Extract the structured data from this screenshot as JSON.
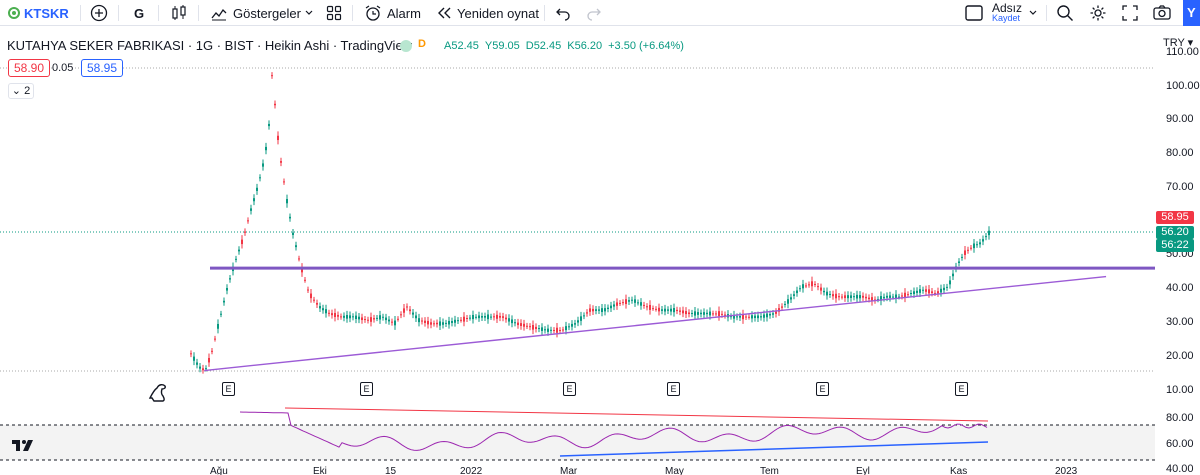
{
  "toolbar": {
    "symbol": "KTSKR",
    "interval": "G",
    "indicators_label": "Göstergeler",
    "alarm_label": "Alarm",
    "replay_label": "Yeniden oynat",
    "layout_name": "Adsız",
    "save_label": "Kaydet",
    "corner_label": "Y"
  },
  "legend": {
    "title": "KUTAHYA SEKER FABRIKASI · 1G · BIST · Heikin Ashi · TradingView",
    "delayed_badge": "D",
    "open": "A52.45",
    "high": "Y59.05",
    "low": "D52.45",
    "close": "K56.20",
    "change": "+3.50 (+6.64%)"
  },
  "trade": {
    "sell_price": "58.90",
    "spread": "0.05",
    "buy_price": "58.95",
    "collapse_count": "2"
  },
  "price_axis": {
    "currency": "TRY",
    "ticks": [
      "110.00",
      "100.00",
      "90.00",
      "80.00",
      "70.00",
      "60.00",
      "50.00",
      "40.00",
      "30.00",
      "20.00",
      "10.00"
    ],
    "tag_high": "58.95",
    "tag_last": "56.20",
    "tag_countdown": "56:22",
    "tag_high_color": "#f23645",
    "tag_last_color": "#089981"
  },
  "indicator_axis": {
    "ticks": [
      "80.00",
      "60.00",
      "40.00"
    ]
  },
  "time_axis": {
    "labels": [
      "Ağu",
      "Eki",
      "15",
      "2022",
      "Mar",
      "May",
      "Tem",
      "Eyl",
      "Kas",
      "2023"
    ]
  },
  "events": {
    "labels": [
      "E",
      "E",
      "E",
      "E",
      "E",
      "E"
    ]
  },
  "colors": {
    "up": "#089981",
    "down": "#f23645",
    "horizontal_line": "#7e57c2",
    "trendline": "#9c5bd6",
    "indicator_line": "#9c27b0",
    "accent": "#2962ff"
  },
  "chart_data": {
    "type": "candlestick",
    "style": "Heikin Ashi",
    "y_range": [
      8,
      112
    ],
    "series": [
      {
        "name": "KUTAHYA SEKER FABRIKASI",
        "points": [
          [
            0,
            20
          ],
          [
            8,
            16
          ],
          [
            14,
            15
          ],
          [
            20,
            20
          ],
          [
            28,
            30
          ],
          [
            36,
            40
          ],
          [
            44,
            48
          ],
          [
            52,
            55
          ],
          [
            58,
            62
          ],
          [
            64,
            68
          ],
          [
            70,
            75
          ],
          [
            76,
            85
          ],
          [
            80,
            105
          ],
          [
            84,
            88
          ],
          [
            88,
            78
          ],
          [
            94,
            66
          ],
          [
            100,
            56
          ],
          [
            108,
            46
          ],
          [
            116,
            38
          ],
          [
            126,
            34
          ],
          [
            136,
            32
          ],
          [
            148,
            31
          ],
          [
            160,
            31
          ],
          [
            174,
            30
          ],
          [
            188,
            31
          ],
          [
            200,
            29
          ],
          [
            212,
            34
          ],
          [
            224,
            30
          ],
          [
            236,
            29
          ],
          [
            250,
            29
          ],
          [
            264,
            30
          ],
          [
            278,
            31
          ],
          [
            292,
            31
          ],
          [
            306,
            31
          ],
          [
            320,
            29
          ],
          [
            334,
            28
          ],
          [
            350,
            27
          ],
          [
            364,
            27
          ],
          [
            378,
            29
          ],
          [
            392,
            33
          ],
          [
            406,
            33
          ],
          [
            420,
            35
          ],
          [
            434,
            36
          ],
          [
            448,
            34
          ],
          [
            462,
            33
          ],
          [
            476,
            33
          ],
          [
            490,
            32
          ],
          [
            504,
            32
          ],
          [
            518,
            32
          ],
          [
            532,
            31
          ],
          [
            546,
            31
          ],
          [
            560,
            31
          ],
          [
            574,
            32
          ],
          [
            588,
            36
          ],
          [
            600,
            40
          ],
          [
            612,
            41
          ],
          [
            624,
            38
          ],
          [
            636,
            37
          ],
          [
            648,
            37
          ],
          [
            660,
            37
          ],
          [
            672,
            36
          ],
          [
            684,
            37
          ],
          [
            696,
            37
          ],
          [
            708,
            38
          ],
          [
            720,
            39
          ],
          [
            732,
            38
          ],
          [
            744,
            40
          ],
          [
            752,
            46
          ],
          [
            760,
            50
          ],
          [
            768,
            52
          ],
          [
            776,
            53
          ],
          [
            784,
            56
          ]
        ]
      }
    ],
    "horizontal_level": 45.5,
    "trendline": {
      "from": [
        14,
        15
      ],
      "to": [
        900,
        43
      ]
    }
  }
}
